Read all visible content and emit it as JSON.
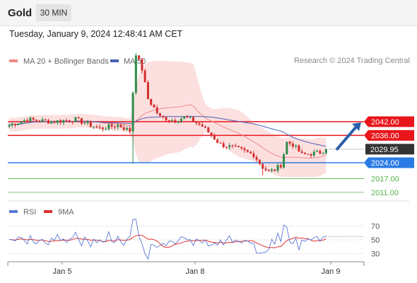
{
  "header": {
    "instrument": "Gold",
    "timeframe": "30 MIN",
    "datetime": "Tuesday, January 9, 2024 12:48:41 AM CET"
  },
  "copyright": "Research © 2024 Trading Central",
  "colors": {
    "resistance": "#e8151b",
    "support": "#2b7be4",
    "target": "#56b44c",
    "bollinger": "#fbd6d6",
    "ma20": "#f08a8a",
    "ma50": "#4a5fb5",
    "up": "#2e8b4a",
    "down": "#d62d2d",
    "price_tag": "#333333",
    "arrow": "#2a5fa8",
    "rsi": "#5b78d6",
    "rsi_ma": "#e03030"
  },
  "chart_data": [
    {
      "type": "candlestick",
      "title": "",
      "legend": [
        {
          "name": "MA 20 + Bollinger Bands",
          "color": "#f08a8a"
        },
        {
          "name": "MA 50",
          "color": "#4a5fb5"
        }
      ],
      "legend_position": "top-left",
      "grid": false,
      "ylim": [
        2008,
        2078
      ],
      "x_ticks": [
        "Jan 5",
        "Jan 8",
        "Jan 9"
      ],
      "levels": [
        {
          "label": "2042.00",
          "value": 2042.0,
          "kind": "resistance"
        },
        {
          "label": "2036.00",
          "value": 2036.0,
          "kind": "resistance"
        },
        {
          "label": "2029.95",
          "value": 2029.95,
          "kind": "last_price"
        },
        {
          "label": "2024.00",
          "value": 2024.0,
          "kind": "support"
        },
        {
          "label": "2017.00",
          "value": 2017.0,
          "kind": "target"
        },
        {
          "label": "2011.00",
          "value": 2011.0,
          "kind": "target"
        }
      ],
      "projection": {
        "from": 2029.95,
        "to": 2042.0
      }
    },
    {
      "type": "line",
      "title": "",
      "legend": [
        {
          "name": "RSI",
          "color": "#5b78d6"
        },
        {
          "name": "9MA",
          "color": "#e03030"
        }
      ],
      "ylim": [
        20,
        80
      ],
      "y_ticks": [
        "70",
        "50",
        "30"
      ],
      "y_tick_values": [
        70,
        50,
        30
      ],
      "last_rsi": 55
    }
  ]
}
